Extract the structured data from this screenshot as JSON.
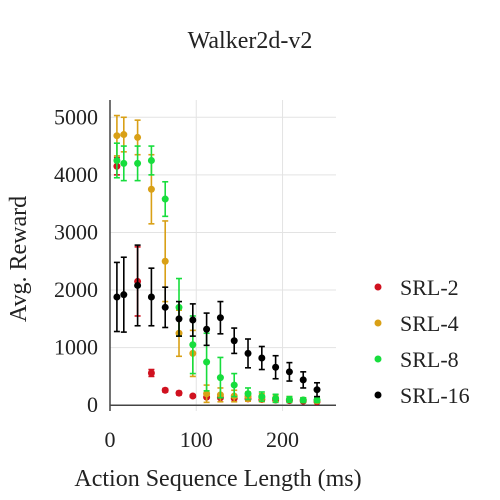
{
  "chart_data": {
    "type": "scatter",
    "title": "Walker2d-v2",
    "xlabel": "Action Sequence Length (ms)",
    "ylabel": "Avg. Reward",
    "xlim": [
      0,
      262
    ],
    "ylim": [
      -100,
      5300
    ],
    "xticks": [
      0,
      100,
      200
    ],
    "yticks": [
      0,
      1000,
      2000,
      3000,
      4000,
      5000
    ],
    "grid": true,
    "legend": "right",
    "series": [
      {
        "name": "SRL-2",
        "color": "#d0111f",
        "points": [
          {
            "x": 8,
            "y": 4150,
            "err": 150
          },
          {
            "x": 32,
            "y": 2150,
            "err": 600
          },
          {
            "x": 48,
            "y": 560,
            "err": 60
          },
          {
            "x": 64,
            "y": 260,
            "err": 30
          },
          {
            "x": 80,
            "y": 210,
            "err": 30
          },
          {
            "x": 96,
            "y": 160,
            "err": 20
          },
          {
            "x": 112,
            "y": 140,
            "err": 20
          },
          {
            "x": 128,
            "y": 130,
            "err": 20
          },
          {
            "x": 144,
            "y": 120,
            "err": 20
          },
          {
            "x": 160,
            "y": 110,
            "err": 20
          },
          {
            "x": 176,
            "y": 100,
            "err": 20
          },
          {
            "x": 192,
            "y": 90,
            "err": 20
          },
          {
            "x": 208,
            "y": 80,
            "err": 15
          },
          {
            "x": 224,
            "y": 70,
            "err": 15
          },
          {
            "x": 240,
            "y": 60,
            "err": 15
          }
        ]
      },
      {
        "name": "SRL-4",
        "color": "#d9a016",
        "points": [
          {
            "x": 8,
            "y": 4680,
            "err": 350
          },
          {
            "x": 16,
            "y": 4700,
            "err": 300
          },
          {
            "x": 32,
            "y": 4650,
            "err": 300
          },
          {
            "x": 48,
            "y": 3750,
            "err": 600
          },
          {
            "x": 64,
            "y": 2500,
            "err": 700
          },
          {
            "x": 80,
            "y": 1250,
            "err": 400
          },
          {
            "x": 96,
            "y": 900,
            "err": 400
          },
          {
            "x": 112,
            "y": 200,
            "err": 150
          },
          {
            "x": 128,
            "y": 180,
            "err": 120
          },
          {
            "x": 144,
            "y": 160,
            "err": 100
          },
          {
            "x": 160,
            "y": 150,
            "err": 80
          },
          {
            "x": 176,
            "y": 130,
            "err": 70
          },
          {
            "x": 192,
            "y": 120,
            "err": 60
          },
          {
            "x": 208,
            "y": 100,
            "err": 50
          },
          {
            "x": 224,
            "y": 90,
            "err": 40
          },
          {
            "x": 240,
            "y": 80,
            "err": 40
          }
        ]
      },
      {
        "name": "SRL-8",
        "color": "#17dd3d",
        "points": [
          {
            "x": 8,
            "y": 4250,
            "err": 300
          },
          {
            "x": 16,
            "y": 4200,
            "err": 300
          },
          {
            "x": 32,
            "y": 4200,
            "err": 300
          },
          {
            "x": 48,
            "y": 4250,
            "err": 250
          },
          {
            "x": 64,
            "y": 3580,
            "err": 300
          },
          {
            "x": 80,
            "y": 1700,
            "err": 500
          },
          {
            "x": 96,
            "y": 1050,
            "err": 500
          },
          {
            "x": 112,
            "y": 750,
            "err": 500
          },
          {
            "x": 128,
            "y": 480,
            "err": 350
          },
          {
            "x": 144,
            "y": 350,
            "err": 200
          },
          {
            "x": 160,
            "y": 200,
            "err": 100
          },
          {
            "x": 176,
            "y": 150,
            "err": 80
          },
          {
            "x": 192,
            "y": 120,
            "err": 70
          },
          {
            "x": 208,
            "y": 100,
            "err": 50
          },
          {
            "x": 224,
            "y": 90,
            "err": 40
          },
          {
            "x": 240,
            "y": 90,
            "err": 40
          }
        ]
      },
      {
        "name": "SRL-16",
        "color": "#000000",
        "points": [
          {
            "x": 8,
            "y": 1880,
            "err": 600
          },
          {
            "x": 16,
            "y": 1920,
            "err": 650
          },
          {
            "x": 32,
            "y": 2080,
            "err": 700
          },
          {
            "x": 48,
            "y": 1880,
            "err": 500
          },
          {
            "x": 64,
            "y": 1700,
            "err": 350
          },
          {
            "x": 80,
            "y": 1500,
            "err": 300
          },
          {
            "x": 96,
            "y": 1480,
            "err": 280
          },
          {
            "x": 112,
            "y": 1320,
            "err": 280
          },
          {
            "x": 128,
            "y": 1520,
            "err": 280
          },
          {
            "x": 144,
            "y": 1120,
            "err": 220
          },
          {
            "x": 160,
            "y": 900,
            "err": 250
          },
          {
            "x": 176,
            "y": 820,
            "err": 200
          },
          {
            "x": 192,
            "y": 660,
            "err": 200
          },
          {
            "x": 208,
            "y": 580,
            "err": 160
          },
          {
            "x": 224,
            "y": 440,
            "err": 140
          },
          {
            "x": 240,
            "y": 270,
            "err": 120
          }
        ]
      }
    ]
  }
}
